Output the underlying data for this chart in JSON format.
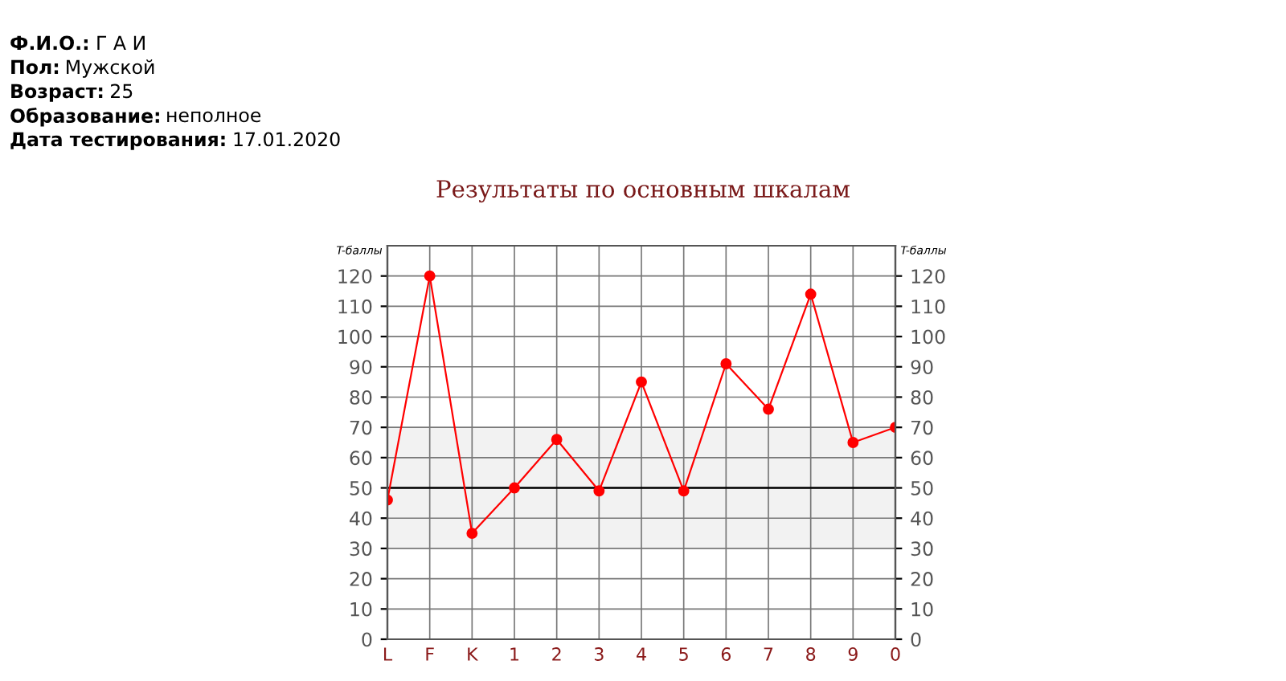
{
  "chart_data": {
    "type": "line",
    "title": "Результаты по основным шкалам",
    "ylabel": "T-баллы",
    "y2label": "T-баллы",
    "annotations": [
      "Ф.И.О.: Г А И",
      "Пол: Мужской",
      "Возраст: 25",
      "Образование: неполное",
      "Дата тестирования: 17.01.2020"
    ],
    "categories": [
      "L",
      "F",
      "K",
      "1",
      "2",
      "3",
      "4",
      "5",
      "6",
      "7",
      "8",
      "9",
      "0"
    ],
    "series": [
      {
        "color": "#ff0000",
        "values": [
          46,
          120,
          35,
          50,
          66,
          49,
          85,
          49,
          91,
          76,
          114,
          65,
          70
        ]
      }
    ],
    "marker": "circle",
    "line_style": "solid",
    "grid": true,
    "legend": false,
    "ylim": [
      0,
      130
    ],
    "yticks": [
      0,
      10,
      20,
      30,
      40,
      50,
      60,
      70,
      80,
      90,
      100,
      110,
      120
    ],
    "y2lim": [
      0,
      130
    ],
    "y2ticks": [
      0,
      10,
      20,
      30,
      40,
      50,
      60,
      70,
      80,
      90,
      100,
      110,
      120
    ],
    "bands": [
      {
        "axis": "y",
        "from": 30,
        "to": 70,
        "color": "#f2f2f2"
      }
    ],
    "ref_lines": [
      {
        "axis": "y",
        "value": 50,
        "color": "#000000",
        "line_style": "solid"
      }
    ]
  }
}
